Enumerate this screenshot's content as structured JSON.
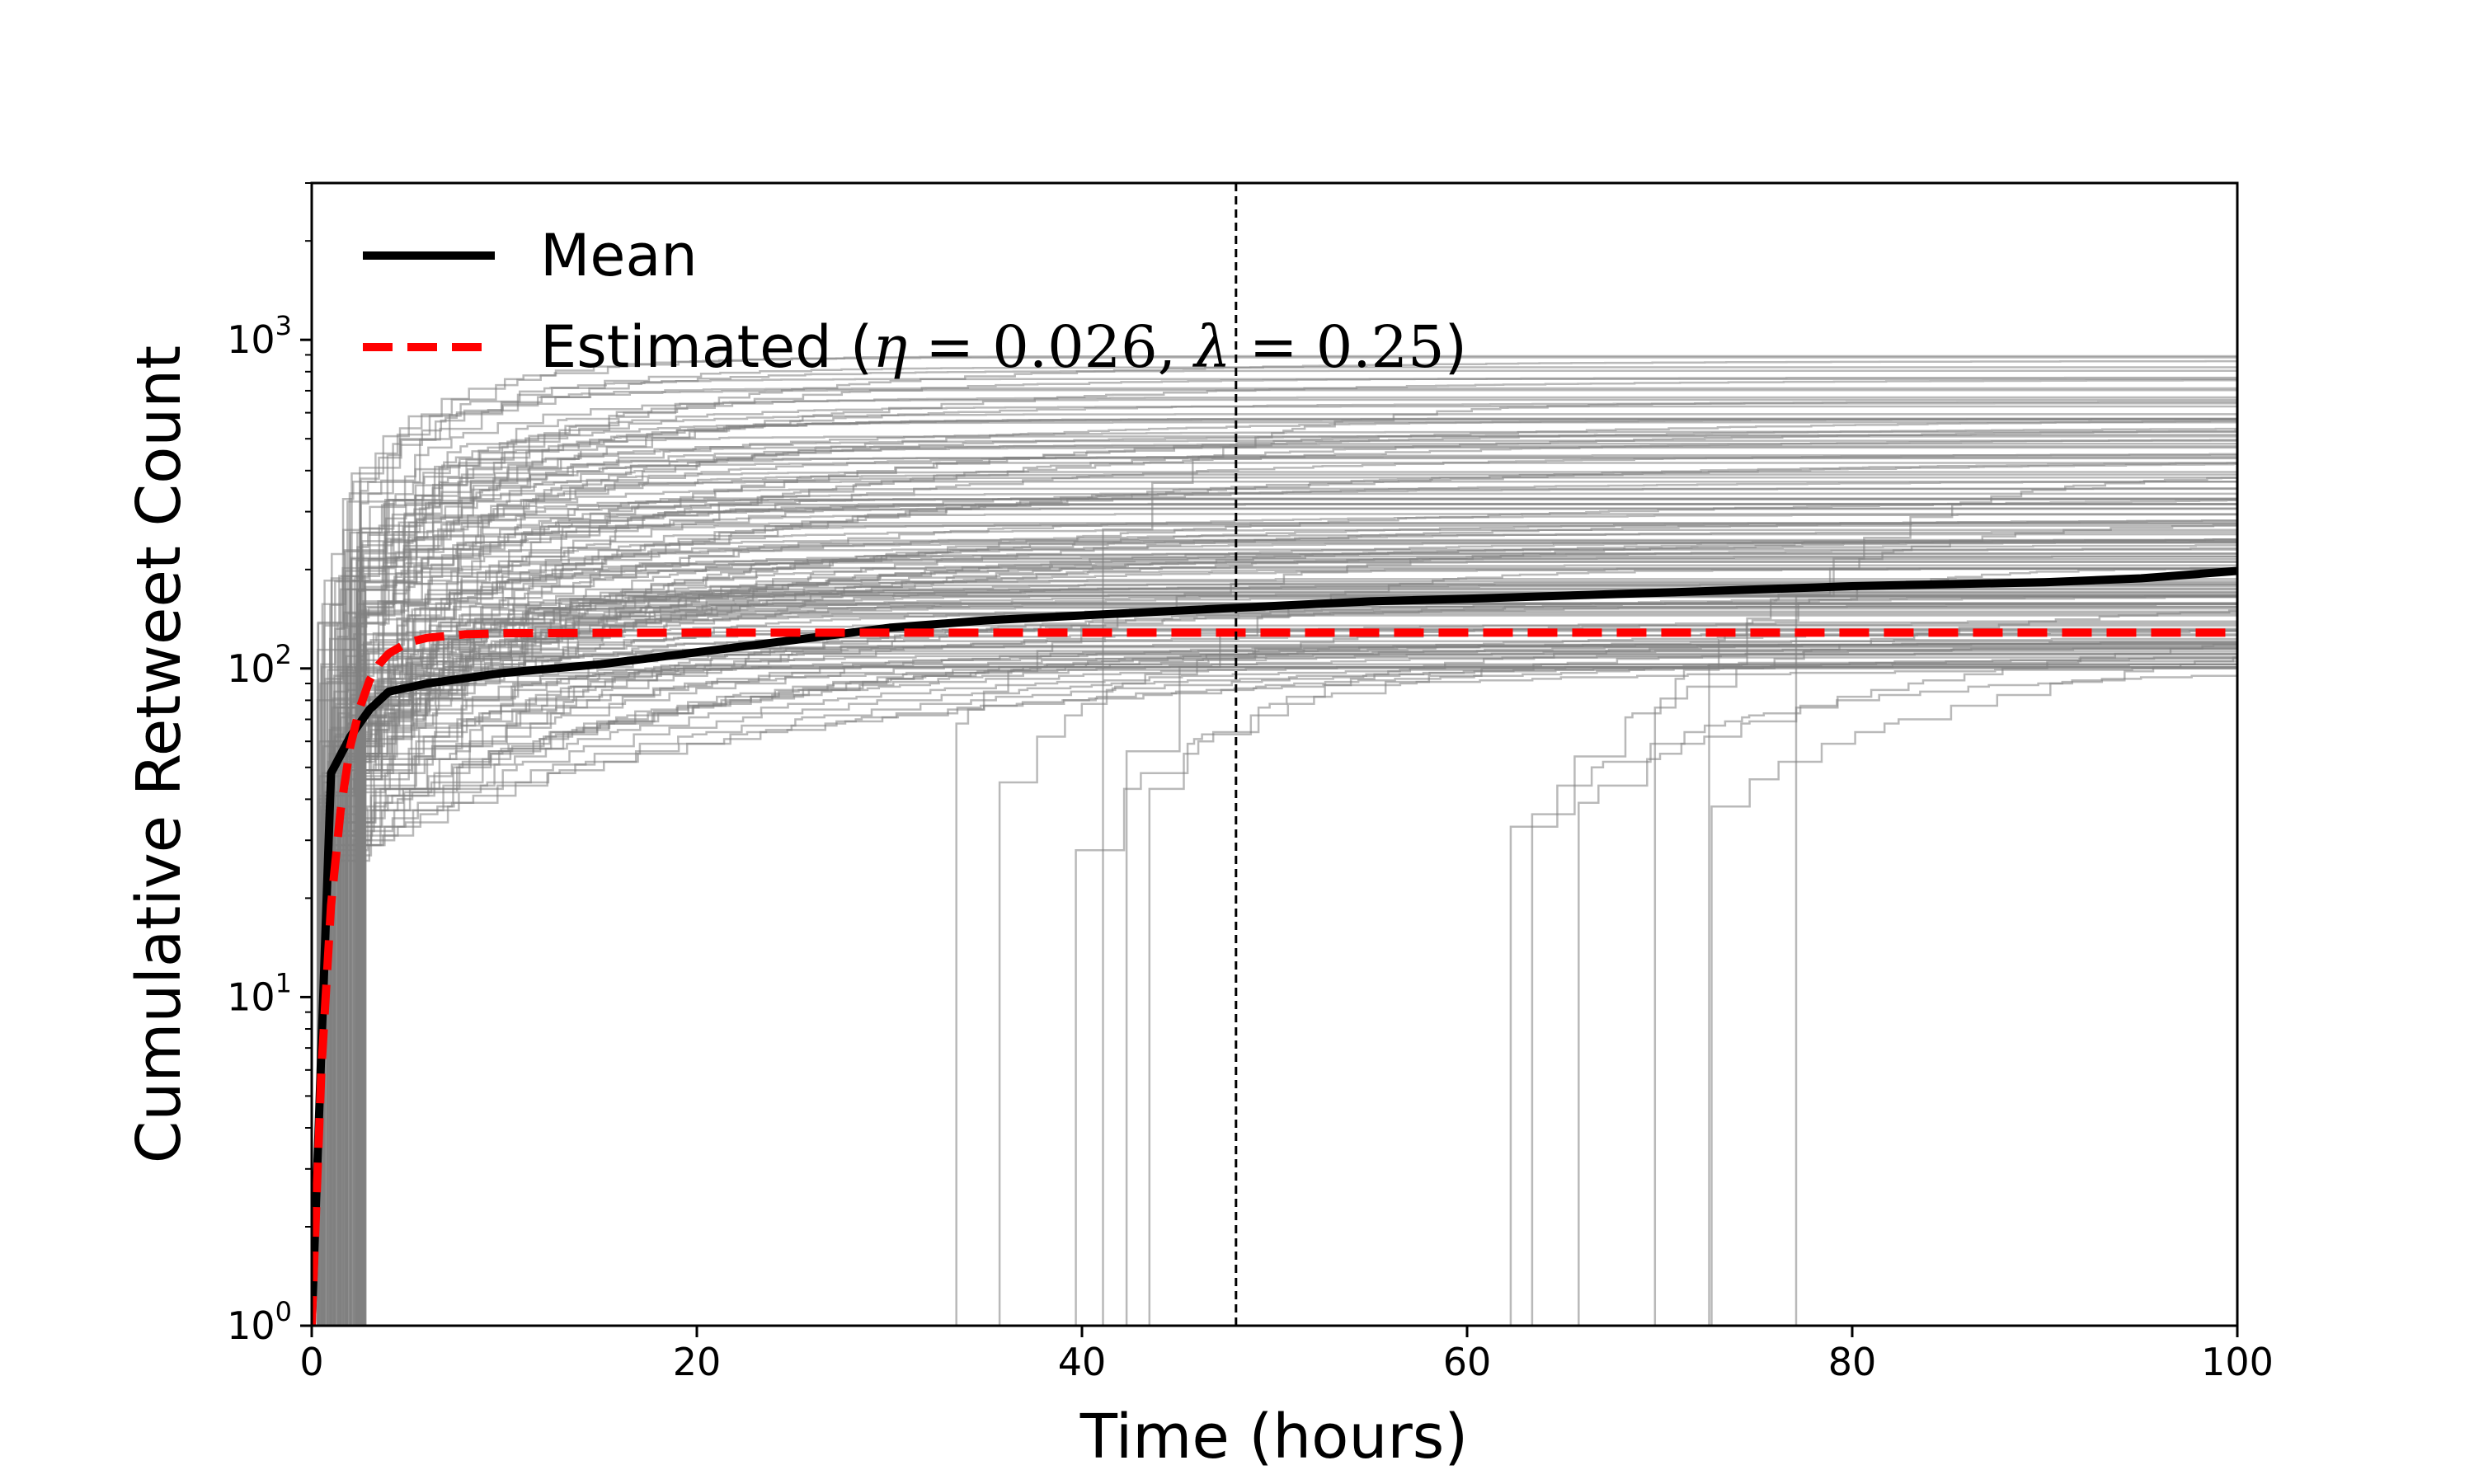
{
  "chart_data": {
    "type": "line",
    "title": "",
    "xlabel": "Time (hours)",
    "ylabel": "Cumulative Retweet Count",
    "xlim": [
      0,
      100
    ],
    "ylim": [
      1,
      3000
    ],
    "yscale": "log",
    "x_ticks": [
      0,
      20,
      40,
      60,
      80,
      100
    ],
    "y_ticks": [
      {
        "value": 1,
        "base": "10",
        "exp": "0"
      },
      {
        "value": 10,
        "base": "10",
        "exp": "1"
      },
      {
        "value": 100,
        "base": "10",
        "exp": "2"
      },
      {
        "value": 1000,
        "base": "10",
        "exp": "3"
      }
    ],
    "grid": false,
    "legend_position": "top-left",
    "legend": {
      "mean_label": "Mean",
      "estimated_prefix": "Estimated (",
      "eta_symbol": "η",
      "eta_value": "0.026",
      "lambda_symbol": "λ",
      "lambda_value": "0.25",
      "estimated_suffix": ")"
    },
    "reference_line": {
      "x": 48,
      "style": "dashed",
      "color": "#000000"
    },
    "series": [
      {
        "name": "Mean",
        "color": "#000000",
        "style": "solid",
        "x": [
          0,
          1,
          2,
          3,
          4,
          6,
          10,
          15,
          20,
          25,
          30,
          35,
          40,
          48,
          55,
          60,
          70,
          80,
          90,
          95,
          100
        ],
        "y": [
          1,
          48,
          62,
          75,
          85,
          90,
          97,
          103,
          112,
          122,
          133,
          140,
          145,
          153,
          160,
          163,
          170,
          178,
          183,
          188,
          198
        ]
      },
      {
        "name": "Estimated",
        "color": "#ff0000",
        "style": "dashed",
        "x": [
          0,
          0.5,
          1,
          1.5,
          2,
          2.5,
          3,
          3.5,
          4,
          5,
          6,
          8,
          10,
          20,
          40,
          60,
          80,
          100
        ],
        "y": [
          1,
          6,
          19,
          37,
          58,
          76,
          92,
          103,
          111,
          120,
          124,
          127,
          128,
          128.5,
          128.5,
          128.5,
          128.5,
          128.5
        ]
      }
    ],
    "background_cascades": {
      "count": 160,
      "color": "#808080",
      "opacity": 0.55,
      "note_final_range": [
        100,
        900
      ]
    }
  }
}
